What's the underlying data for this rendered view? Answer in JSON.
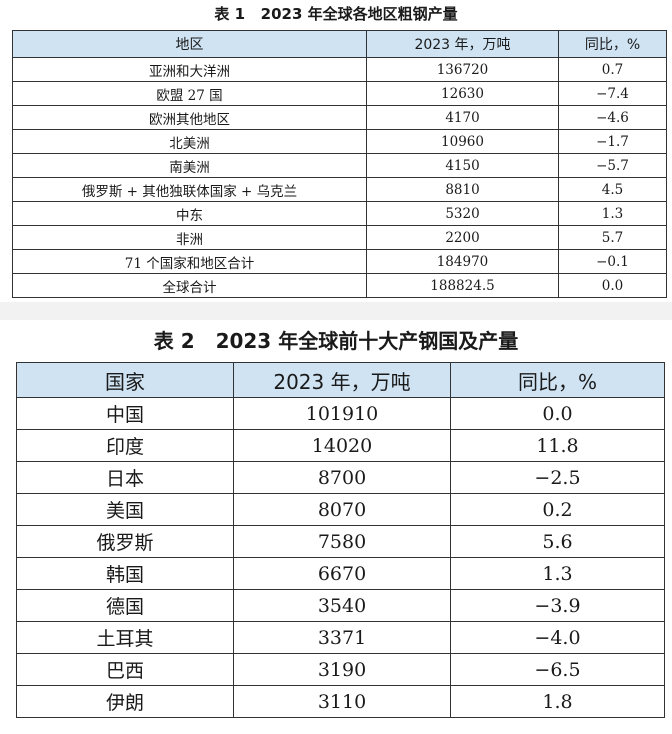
{
  "table1": {
    "caption": "表 1   2023 年全球各地区粗钢产量",
    "headers": [
      "地区",
      "2023 年，万吨",
      "同比，%"
    ],
    "rows": [
      [
        "亚洲和大洋洲",
        "136720",
        "0.7"
      ],
      [
        "欧盟 27 国",
        "12630",
        "−7.4"
      ],
      [
        "欧洲其他地区",
        "4170",
        "−4.6"
      ],
      [
        "北美洲",
        "10960",
        "−1.7"
      ],
      [
        "南美洲",
        "4150",
        "−5.7"
      ],
      [
        "俄罗斯 + 其他独联体国家 + 乌克兰",
        "8810",
        "4.5"
      ],
      [
        "中东",
        "5320",
        "1.3"
      ],
      [
        "非洲",
        "2200",
        "5.7"
      ],
      [
        "71 个国家和地区合计",
        "184970",
        "−0.1"
      ],
      [
        "全球合计",
        "188824.5",
        "0.0"
      ]
    ]
  },
  "table2": {
    "caption": "表 2   2023 年全球前十大产钢国及产量",
    "headers": [
      "国家",
      "2023 年，万吨",
      "同比，%"
    ],
    "rows": [
      [
        "中国",
        "101910",
        "0.0"
      ],
      [
        "印度",
        "14020",
        "11.8"
      ],
      [
        "日本",
        "8700",
        "−2.5"
      ],
      [
        "美国",
        "8070",
        "0.2"
      ],
      [
        "俄罗斯",
        "7580",
        "5.6"
      ],
      [
        "韩国",
        "6670",
        "1.3"
      ],
      [
        "德国",
        "3540",
        "−3.9"
      ],
      [
        "土耳其",
        "3371",
        "−4.0"
      ],
      [
        "巴西",
        "3190",
        "−6.5"
      ],
      [
        "伊朗",
        "3110",
        "1.8"
      ]
    ]
  }
}
